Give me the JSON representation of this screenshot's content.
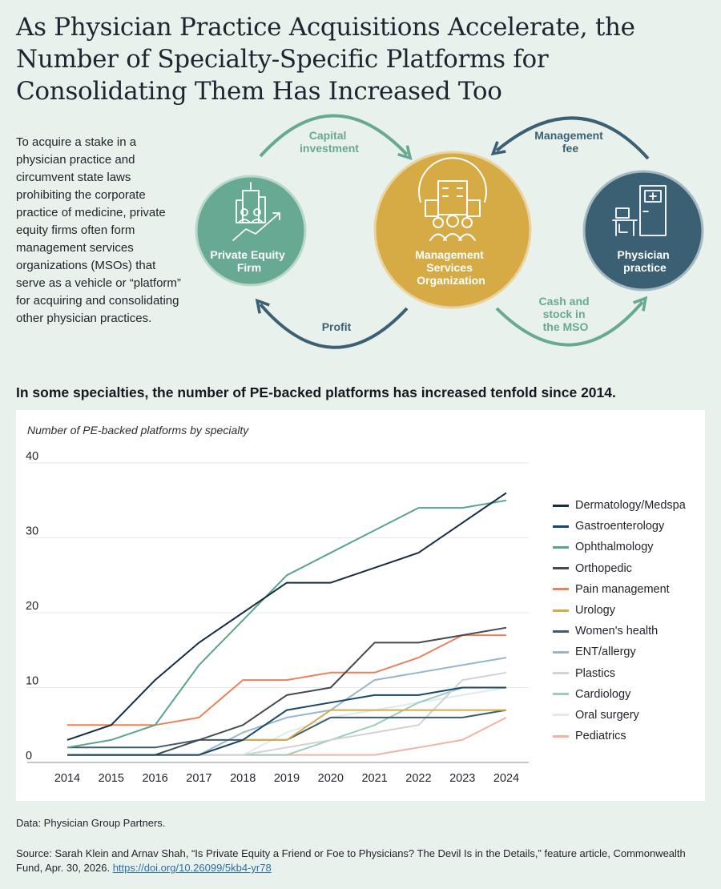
{
  "title": "As Physician Practice Acquisitions Accelerate, the Number of Specialty-Specific Platforms for Consolidating Them Has Increased Too",
  "intro": "To acquire a stake in a physician practice and circumvent state laws prohibiting the corporate practice of medicine, private equity firms often form management services organizations (MSOs) that serve as a vehicle or “platform” for acquiring and consolidating other physician practices.",
  "diagram": {
    "nodes": [
      {
        "label_lines": [
          "Private Equity",
          "Firm"
        ],
        "icon": "city-growth-icon",
        "color": "#67a993"
      },
      {
        "label_lines": [
          "Management",
          "Services",
          "Organization"
        ],
        "icon": "organization-gear-icon",
        "color": "#d6ab45"
      },
      {
        "label_lines": [
          "Physician",
          "practice"
        ],
        "icon": "clinic-door-desk-icon",
        "color": "#3c6073"
      }
    ],
    "flows": [
      {
        "label_lines": [
          "Capital",
          "investment"
        ],
        "color": "#67a993"
      },
      {
        "label_lines": [
          "Profit"
        ],
        "color": "#3c6073"
      },
      {
        "label_lines": [
          "Management",
          "fee"
        ],
        "color": "#3c6073"
      },
      {
        "label_lines": [
          "Cash and",
          "stock in",
          "the MSO"
        ],
        "color": "#67a993"
      }
    ]
  },
  "subhead": "In some specialties, the number of PE-backed platforms has increased tenfold since 2014.",
  "chart_data": {
    "type": "line",
    "title": "Number of PE-backed platforms by specialty",
    "x": [
      2014,
      2015,
      2016,
      2017,
      2018,
      2019,
      2020,
      2021,
      2022,
      2023,
      2024
    ],
    "ylim": [
      0,
      40
    ],
    "yticks": [
      0,
      10,
      20,
      30,
      40
    ],
    "grid": true,
    "legend_position": "right",
    "series": [
      {
        "name": "Dermatology/Medspa",
        "color": "#162c43",
        "values": [
          3,
          5,
          11,
          16,
          20,
          24,
          24,
          26,
          28,
          32,
          36
        ]
      },
      {
        "name": "Gastroenterology",
        "color": "#17476b",
        "values": [
          1,
          1,
          1,
          1,
          3,
          7,
          8,
          9,
          9,
          10,
          10
        ]
      },
      {
        "name": "Ophthalmology",
        "color": "#5aa58a",
        "values": [
          2,
          3,
          5,
          13,
          19,
          25,
          28,
          31,
          34,
          34,
          35
        ]
      },
      {
        "name": "Orthopedic",
        "color": "#444a4e",
        "values": [
          1,
          1,
          1,
          3,
          5,
          9,
          10,
          16,
          16,
          17,
          18
        ]
      },
      {
        "name": "Pain management",
        "color": "#e8825e",
        "values": [
          5,
          5,
          5,
          6,
          11,
          11,
          12,
          12,
          14,
          17,
          17
        ]
      },
      {
        "name": "Urology",
        "color": "#d4ac4a",
        "values": [
          1,
          1,
          1,
          1,
          3,
          3,
          7,
          7,
          7,
          7,
          7
        ]
      },
      {
        "name": "Women's health",
        "color": "#3e5c6c",
        "values": [
          2,
          2,
          2,
          3,
          3,
          3,
          6,
          6,
          6,
          6,
          7
        ]
      },
      {
        "name": "ENT/allergy",
        "color": "#9ab5c7",
        "values": [
          1,
          1,
          1,
          1,
          4,
          6,
          7,
          11,
          12,
          13,
          14
        ]
      },
      {
        "name": "Plastics",
        "color": "#cfd3d6",
        "values": [
          1,
          1,
          1,
          1,
          1,
          2,
          3,
          4,
          5,
          11,
          12
        ]
      },
      {
        "name": "Cardiology",
        "color": "#9ccdbb",
        "values": [
          1,
          1,
          1,
          1,
          1,
          1,
          3,
          5,
          8,
          10,
          10
        ]
      },
      {
        "name": "Oral surgery",
        "color": "#dfeaed",
        "values": [
          1,
          1,
          1,
          1,
          1,
          4,
          6,
          7,
          8,
          9,
          10
        ]
      },
      {
        "name": "Pediatrics",
        "color": "#f2b3a2",
        "values": [
          1,
          1,
          1,
          1,
          1,
          1,
          1,
          1,
          2,
          3,
          6
        ]
      }
    ]
  },
  "footer": {
    "data_note": "Data: Physician Group Partners.",
    "source_text": "Source: Sarah Klein and Arnav Shah, “Is Private Equity a Friend or Foe to Physicians? The Devil Is in the Details,” feature article, Commonwealth Fund, Apr. 30, 2026. ",
    "source_link": "https://doi.org/10.26099/5kb4-yr78"
  }
}
